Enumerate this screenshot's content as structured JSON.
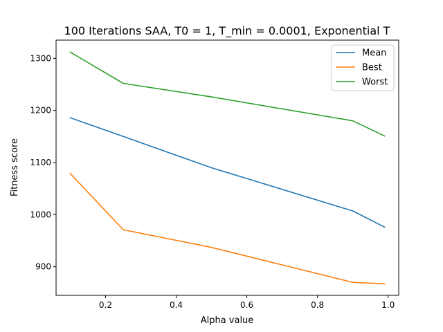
{
  "chart_data": {
    "type": "line",
    "title": "100 Iterations SAA, T0 = 1, T_min = 0.0001, Exponential T",
    "xlabel": "Alpha value",
    "ylabel": "Fitness score",
    "xlim": [
      0.06,
      1.03
    ],
    "ylim": [
      845,
      1335
    ],
    "xticks": [
      0.2,
      0.4,
      0.6,
      0.8,
      1.0
    ],
    "xtick_labels": [
      "0.2",
      "0.4",
      "0.6",
      "0.8",
      "1.0"
    ],
    "yticks": [
      900,
      1000,
      1100,
      1200,
      1300
    ],
    "ytick_labels": [
      "900",
      "1000",
      "1100",
      "1200",
      "1300"
    ],
    "grid": false,
    "legend_position": "top-right",
    "x": [
      0.1,
      0.25,
      0.5,
      0.9,
      0.99
    ],
    "series": [
      {
        "name": "Mean",
        "color": "#1f77b4",
        "values": [
          1186,
          1150,
          1090,
          1007,
          976
        ]
      },
      {
        "name": "Best",
        "color": "#ff7f0e",
        "values": [
          1079,
          971,
          937,
          870,
          867
        ]
      },
      {
        "name": "Worst",
        "color": "#2ca02c",
        "values": [
          1312,
          1252,
          1226,
          1180,
          1151
        ]
      }
    ]
  }
}
